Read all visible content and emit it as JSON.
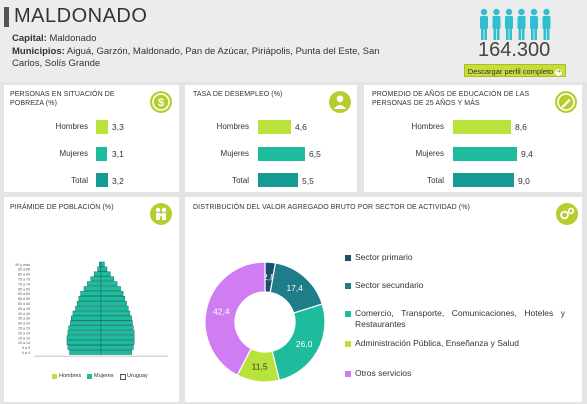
{
  "header": {
    "title": "MALDONADO",
    "capital_label": "Capital:",
    "capital_value": "Maldonado",
    "municipios_label": "Municipios:",
    "municipios_value": "Aiguá, Garzón, Maldonado, Pan de Azúcar, Piriápolis, Punta del Este, San Carlos, Solís Grande",
    "population": "164.300",
    "download_label": "Descargar perfil completo",
    "people_icon": "people-icon"
  },
  "colors": {
    "lime": "#b7e33a",
    "teal": "#1ebc9c",
    "dark_teal": "#139b94",
    "navy": "#1b6a86",
    "violet": "#d07cf2"
  },
  "pobreza": {
    "title": "PERSONAS EN SITUACIÓN DE POBREZA (%)",
    "icon": "money-icon",
    "rows": [
      {
        "label": "Hombres",
        "value": "3,3",
        "num": 3.3
      },
      {
        "label": "Mujeres",
        "value": "3,1",
        "num": 3.1
      },
      {
        "label": "Total",
        "value": "3,2",
        "num": 3.2
      }
    ]
  },
  "desempleo": {
    "title": "TASA DE DESEMPLEO (%)",
    "icon": "worker-icon",
    "rows": [
      {
        "label": "Hombres",
        "value": "4,6",
        "num": 4.6
      },
      {
        "label": "Mujeres",
        "value": "6,5",
        "num": 6.5
      },
      {
        "label": "Total",
        "value": "5,5",
        "num": 5.5
      }
    ]
  },
  "educacion": {
    "title": "PROMEDIO DE AÑOS DE EDUCACIÓN DE LAS PERSONAS DE 25 AÑOS Y MÁS",
    "icon": "pencil-icon",
    "rows": [
      {
        "label": "Hombres",
        "value": "8,6",
        "num": 8.6
      },
      {
        "label": "Mujeres",
        "value": "9,4",
        "num": 9.4
      },
      {
        "label": "Total",
        "value": "9,0",
        "num": 9.0
      }
    ]
  },
  "piramide": {
    "title": "PIRÁMIDE DE POBLACIÓN (%)",
    "icon": "family-icon",
    "legend": [
      "Hombres",
      "Mujeres",
      "Uruguay"
    ]
  },
  "vab": {
    "title": "DISTRIBUCIÓN DEL VALOR AGREGADO BRUTO POR SECTOR DE ACTIVIDAD (%)",
    "icon": "gears-icon"
  },
  "chart_data": [
    {
      "type": "pie",
      "title": "DISTRIBUCIÓN DEL VALOR AGREGADO BRUTO POR SECTOR DE ACTIVIDAD (%)",
      "categories": [
        "Sector primario",
        "Sector secundario",
        "Comercio, Transporte, Comunicaciones, Hoteles y Restaurantes",
        "Administración Pública, Enseñanza y Salud",
        "Otros servicios"
      ],
      "values": [
        2.8,
        17.4,
        26.0,
        11.5,
        42.4
      ],
      "labels": [
        "2,8",
        "17,4",
        "26,0",
        "11,5",
        "42,4"
      ],
      "colors": [
        "#1b4f6e",
        "#1f7d8a",
        "#1ebc9c",
        "#b7e33a",
        "#d07cf2"
      ],
      "legend": "right"
    },
    {
      "type": "bar",
      "title": "PIRÁMIDE DE POBLACIÓN (%)",
      "categories": [
        "90 y más",
        "85 a 89",
        "80 a 84",
        "75 a 79",
        "70 a 74",
        "65 a 69",
        "60 a 64",
        "55 a 59",
        "50 a 54",
        "45 a 49",
        "40 a 44",
        "35 a 39",
        "30 a 34",
        "25 a 29",
        "20 a 24",
        "15 a 19",
        "10 a 14",
        "5 a 9",
        "0 a 4"
      ],
      "series": [
        {
          "name": "Hombres",
          "values": [
            0.2,
            0.4,
            0.8,
            1.2,
            1.6,
            2.0,
            2.4,
            2.6,
            2.8,
            3.0,
            3.3,
            3.5,
            3.6,
            3.8,
            3.9,
            4.0,
            4.0,
            3.9,
            3.7
          ]
        },
        {
          "name": "Mujeres",
          "values": [
            0.4,
            0.7,
            1.1,
            1.5,
            1.9,
            2.3,
            2.6,
            2.8,
            3.0,
            3.2,
            3.4,
            3.6,
            3.7,
            3.8,
            3.9,
            3.9,
            3.9,
            3.8,
            3.6
          ]
        }
      ],
      "legend": "bottom"
    }
  ]
}
